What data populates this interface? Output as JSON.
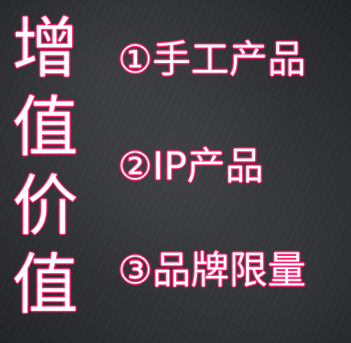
{
  "title": {
    "chars": [
      "增",
      "值",
      "价",
      "值"
    ]
  },
  "items": [
    {
      "label": "①手工产品"
    },
    {
      "label": "②IP产品"
    },
    {
      "label": "③品牌限量"
    }
  ]
}
